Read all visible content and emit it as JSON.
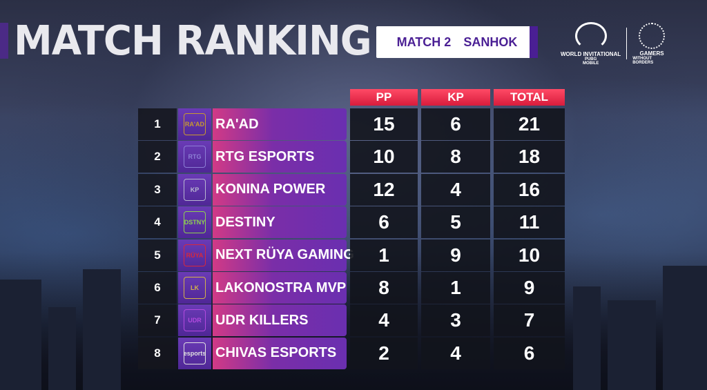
{
  "header": {
    "title": "MATCH RANKING",
    "match_number": "MATCH 2",
    "map": "SANHOK"
  },
  "logos": {
    "event_line1": "WORLD INVITATIONAL",
    "event_line2": "PUBG",
    "event_line3": "MOBILE",
    "partner_line1": "GAMERS",
    "partner_line2": "WITHOUT BORDERS"
  },
  "columns": {
    "pp": "PP",
    "kp": "KP",
    "total": "TOTAL"
  },
  "rows": [
    {
      "rank": "1",
      "team": "RA'AD",
      "logo": "raad-shield-icon",
      "logo_text": "RA'AD",
      "logo_color": "#c99a2e",
      "pp": "15",
      "kp": "6",
      "total": "21"
    },
    {
      "rank": "2",
      "team": "RTG ESPORTS",
      "logo": "rtg-logo-icon",
      "logo_text": "RTG",
      "logo_color": "#8d7fd6",
      "pp": "10",
      "kp": "8",
      "total": "18"
    },
    {
      "rank": "3",
      "team": "KONINA POWER",
      "logo": "horse-logo-icon",
      "logo_text": "KP",
      "logo_color": "#b8b8d0",
      "pp": "12",
      "kp": "4",
      "total": "16"
    },
    {
      "rank": "4",
      "team": "DESTINY",
      "logo": "destiny-logo-icon",
      "logo_text": "DSTNY",
      "logo_color": "#8fd14f",
      "pp": "6",
      "kp": "5",
      "total": "11"
    },
    {
      "rank": "5",
      "team": "NEXT RÜYA GAMING",
      "logo": "ruya-badge-icon",
      "logo_text": "RÜYA",
      "logo_color": "#d8283c",
      "pp": "1",
      "kp": "9",
      "total": "10"
    },
    {
      "rank": "6",
      "team": "LAKONOSTRA MVP",
      "logo": "lakonostra-logo-icon",
      "logo_text": "LK",
      "logo_color": "#d4b24a",
      "pp": "8",
      "kp": "1",
      "total": "9"
    },
    {
      "rank": "7",
      "team": "UDR KILLERS",
      "logo": "udr-helmet-icon",
      "logo_text": "UDR",
      "logo_color": "#b34adf",
      "pp": "4",
      "kp": "3",
      "total": "7"
    },
    {
      "rank": "8",
      "team": "CHIVAS ESPORTS",
      "logo": "chivas-crest-icon",
      "logo_text": "esports",
      "logo_color": "#e0e0e0",
      "pp": "2",
      "kp": "4",
      "total": "6"
    }
  ]
}
